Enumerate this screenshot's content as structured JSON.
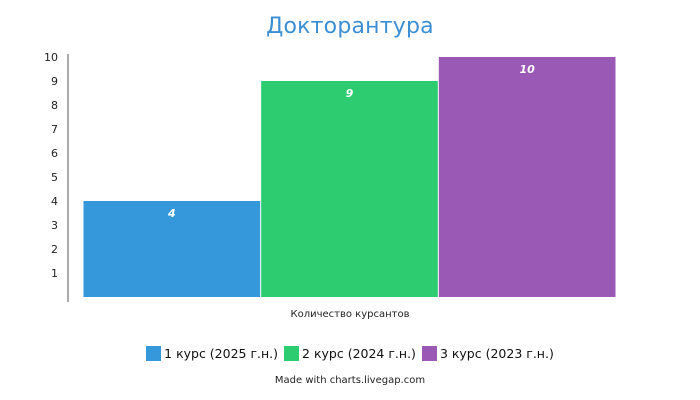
{
  "chart_data": {
    "type": "bar",
    "title": "Докторантура",
    "xlabel": "Количество курсантов",
    "ylabel": "",
    "ylim": [
      0,
      10
    ],
    "yticks": [
      1,
      2,
      3,
      4,
      5,
      6,
      7,
      8,
      9,
      10
    ],
    "grid": false,
    "legend_position": "bottom",
    "series": [
      {
        "name": "1 курс (2025 г.н.)",
        "value": 4,
        "label": "4",
        "color": "#3498db"
      },
      {
        "name": "2 курс (2024 г.н.)",
        "value": 9,
        "label": "9",
        "color": "#2ecc71"
      },
      {
        "name": "3 курс (2023 г.н.)",
        "value": 10,
        "label": "10",
        "color": "#9b59b6"
      }
    ]
  },
  "footer": {
    "credit": "Made with charts.livegap.com"
  }
}
